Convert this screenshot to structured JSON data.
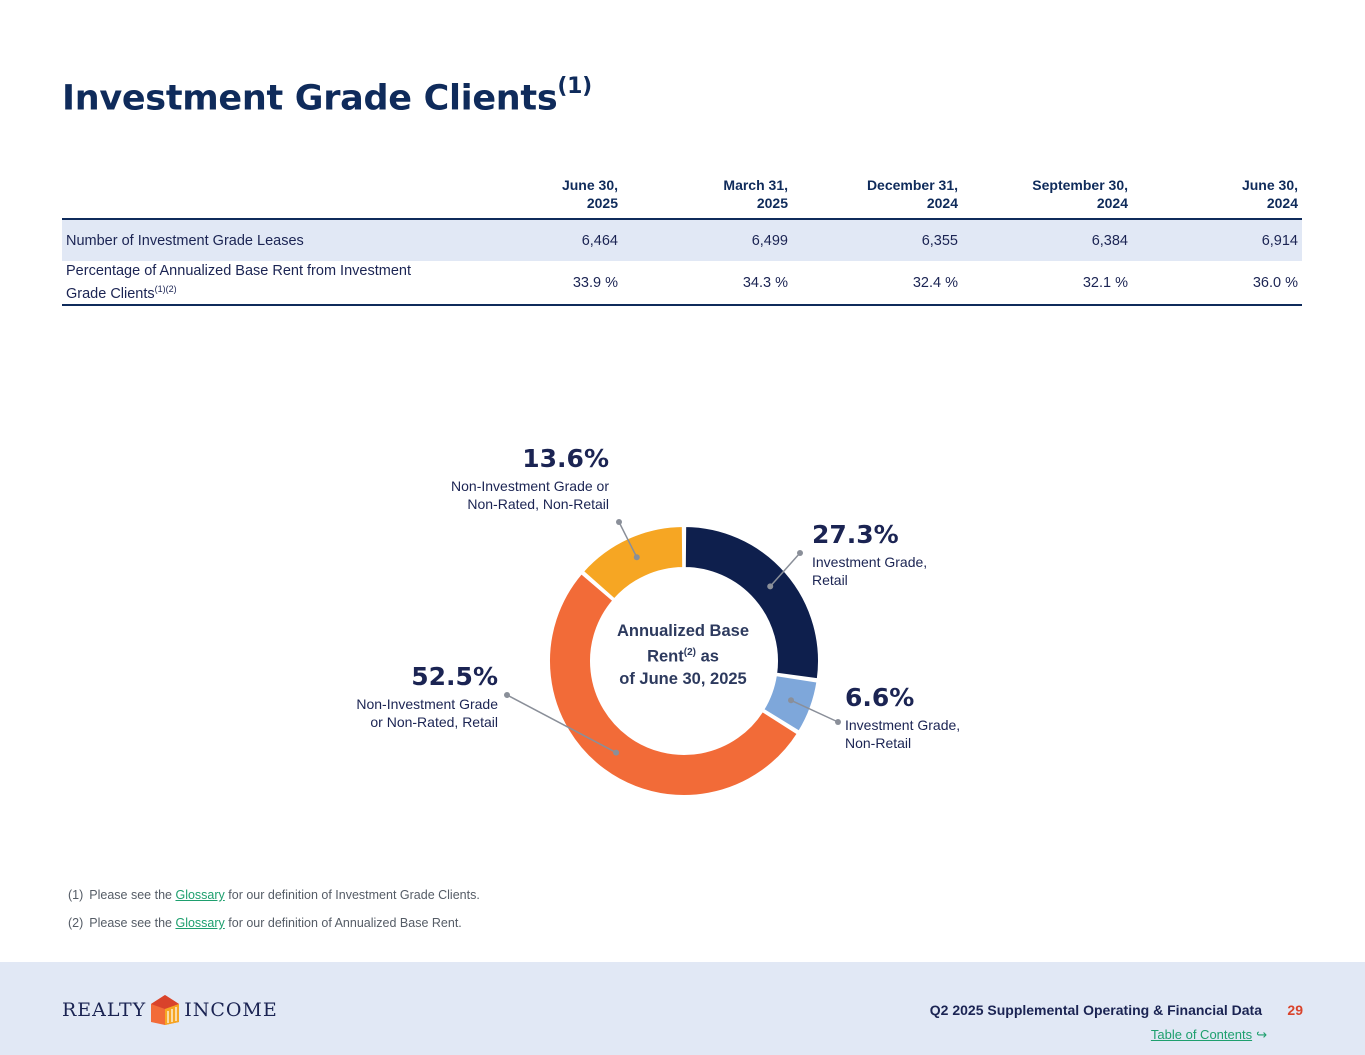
{
  "title": "Investment Grade Clients",
  "title_sup": "(1)",
  "table": {
    "columns": [
      {
        "line1": "June 30,",
        "line2": "2025"
      },
      {
        "line1": "March 31,",
        "line2": "2025"
      },
      {
        "line1": "December 31,",
        "line2": "2024"
      },
      {
        "line1": "September 30,",
        "line2": "2024"
      },
      {
        "line1": "June 30,",
        "line2": "2024"
      }
    ],
    "rows": [
      {
        "label": "Number of Investment Grade Leases",
        "label_sup": "",
        "values": [
          "6,464",
          "6,499",
          "6,355",
          "6,384",
          "6,914"
        ]
      },
      {
        "label": "Percentage of Annualized Base Rent from Investment Grade Clients",
        "label_sup": "(1)(2)",
        "values": [
          "33.9 %",
          "34.3 %",
          "32.4 %",
          "32.1 %",
          "36.0 %"
        ]
      }
    ]
  },
  "chart_data": {
    "type": "pie",
    "variant": "donut",
    "center_label": {
      "line1": "Annualized Base",
      "line2_main": "Rent",
      "line2_sup": "(2)",
      "line2_tail": " as",
      "line3": "of June 30, 2025"
    },
    "slices": [
      {
        "pct_label": "27.3%",
        "value": 27.3,
        "desc1": "Investment Grade,",
        "desc2": "Retail",
        "color": "#0e1f4d"
      },
      {
        "pct_label": "6.6%",
        "value": 6.6,
        "desc1": "Investment Grade,",
        "desc2": "Non-Retail",
        "color": "#7ea7da"
      },
      {
        "pct_label": "52.5%",
        "value": 52.5,
        "desc1": "Non-Investment Grade",
        "desc2": "or Non-Rated, Retail",
        "color": "#f26b38"
      },
      {
        "pct_label": "13.6%",
        "value": 13.6,
        "desc1": "Non-Investment Grade or",
        "desc2": "Non-Rated, Non-Retail",
        "color": "#f6a623"
      }
    ]
  },
  "footnotes": [
    {
      "num": "(1)",
      "pre": "Please see the",
      "link": "Glossary",
      "post": "for our definition of Investment Grade Clients."
    },
    {
      "num": "(2)",
      "pre": "Please see the",
      "link": "Glossary",
      "post": "for our definition of Annualized Base Rent."
    }
  ],
  "footer": {
    "logo_left": "REALTY",
    "logo_right": "INCOME",
    "doc_title": "Q2 2025 Supplemental Operating & Financial Data",
    "page_number": "29",
    "toc_link": "Table of Contents",
    "toc_arrow": "↪"
  }
}
